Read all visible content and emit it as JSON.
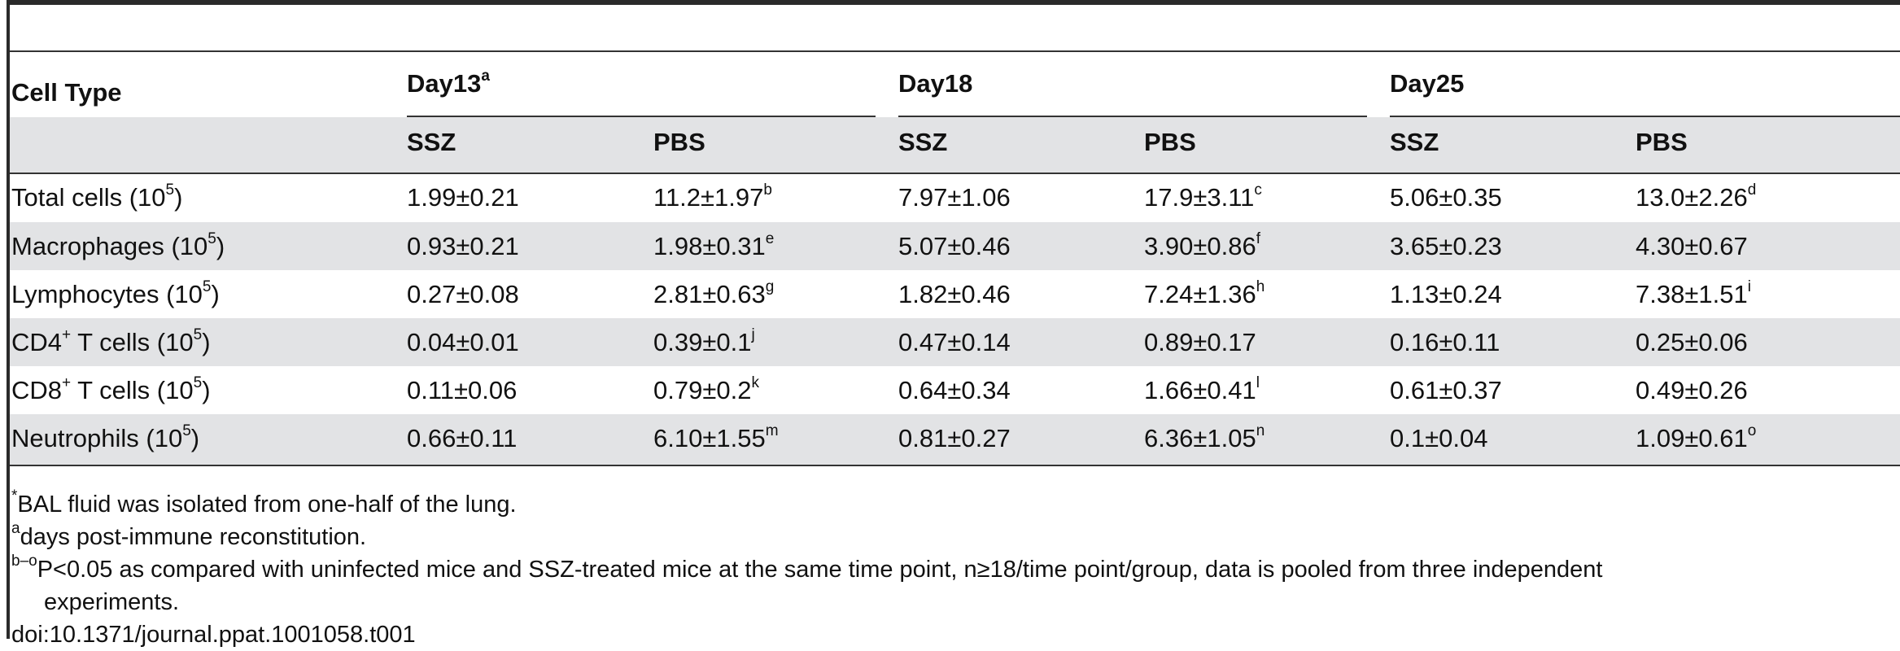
{
  "table": {
    "column_header": "Cell Type",
    "groups": [
      {
        "label": "Day13",
        "sup": "a"
      },
      {
        "label": "Day18",
        "sup": ""
      },
      {
        "label": "Day25",
        "sup": ""
      }
    ],
    "subheaders": [
      "SSZ",
      "PBS",
      "SSZ",
      "PBS",
      "SSZ",
      "PBS"
    ],
    "rows": [
      {
        "label": "Total cells (10",
        "label_sup": "5",
        "label_tail": ")",
        "cells": [
          {
            "v": "1.99±0.21",
            "s": ""
          },
          {
            "v": "11.2±1.97",
            "s": "b"
          },
          {
            "v": "7.97±1.06",
            "s": ""
          },
          {
            "v": "17.9±3.11",
            "s": "c"
          },
          {
            "v": "5.06±0.35",
            "s": ""
          },
          {
            "v": "13.0±2.26",
            "s": "d"
          }
        ]
      },
      {
        "label": "Macrophages (10",
        "label_sup": "5",
        "label_tail": ")",
        "cells": [
          {
            "v": "0.93±0.21",
            "s": ""
          },
          {
            "v": "1.98±0.31",
            "s": "e"
          },
          {
            "v": "5.07±0.46",
            "s": ""
          },
          {
            "v": "3.90±0.86",
            "s": "f"
          },
          {
            "v": "3.65±0.23",
            "s": ""
          },
          {
            "v": "4.30±0.67",
            "s": ""
          }
        ]
      },
      {
        "label": "Lymphocytes (10",
        "label_sup": "5",
        "label_tail": ")",
        "cells": [
          {
            "v": "0.27±0.08",
            "s": ""
          },
          {
            "v": "2.81±0.63",
            "s": "g"
          },
          {
            "v": "1.82±0.46",
            "s": ""
          },
          {
            "v": "7.24±1.36",
            "s": "h"
          },
          {
            "v": "1.13±0.24",
            "s": ""
          },
          {
            "v": "7.38±1.51",
            "s": "i"
          }
        ]
      },
      {
        "label": "CD4",
        "label_sup": "+",
        "label_tail": " T cells (10",
        "label_sup2": "5",
        "label_tail2": ")",
        "cells": [
          {
            "v": "0.04±0.01",
            "s": ""
          },
          {
            "v": "0.39±0.1",
            "s": "j"
          },
          {
            "v": "0.47±0.14",
            "s": ""
          },
          {
            "v": "0.89±0.17",
            "s": ""
          },
          {
            "v": "0.16±0.11",
            "s": ""
          },
          {
            "v": "0.25±0.06",
            "s": ""
          }
        ]
      },
      {
        "label": "CD8",
        "label_sup": "+",
        "label_tail": " T cells (10",
        "label_sup2": "5",
        "label_tail2": ")",
        "cells": [
          {
            "v": "0.11±0.06",
            "s": ""
          },
          {
            "v": "0.79±0.2",
            "s": "k"
          },
          {
            "v": "0.64±0.34",
            "s": ""
          },
          {
            "v": "1.66±0.41",
            "s": "l"
          },
          {
            "v": "0.61±0.37",
            "s": ""
          },
          {
            "v": "0.49±0.26",
            "s": ""
          }
        ]
      },
      {
        "label": "Neutrophils (10",
        "label_sup": "5",
        "label_tail": ")",
        "cells": [
          {
            "v": "0.66±0.11",
            "s": ""
          },
          {
            "v": "6.10±1.55",
            "s": "m"
          },
          {
            "v": "0.81±0.27",
            "s": ""
          },
          {
            "v": "6.36±1.05",
            "s": "n"
          },
          {
            "v": "0.1±0.04",
            "s": ""
          },
          {
            "v": "1.09±0.61",
            "s": "o"
          }
        ]
      }
    ]
  },
  "footnotes": {
    "n1_mark": "*",
    "n1_text": "BAL fluid was isolated from one-half of the lung.",
    "n2_mark": "a",
    "n2_text": "days post-immune reconstitution.",
    "n3_mark": "b–o",
    "n3_text": "P<0.05 as compared with uninfected mice and SSZ-treated mice at the same time point, n≥18/time point/group, data is pooled from three independent",
    "n3_cont": "experiments.",
    "doi": "doi:10.1371/journal.ppat.1001058.t001"
  }
}
